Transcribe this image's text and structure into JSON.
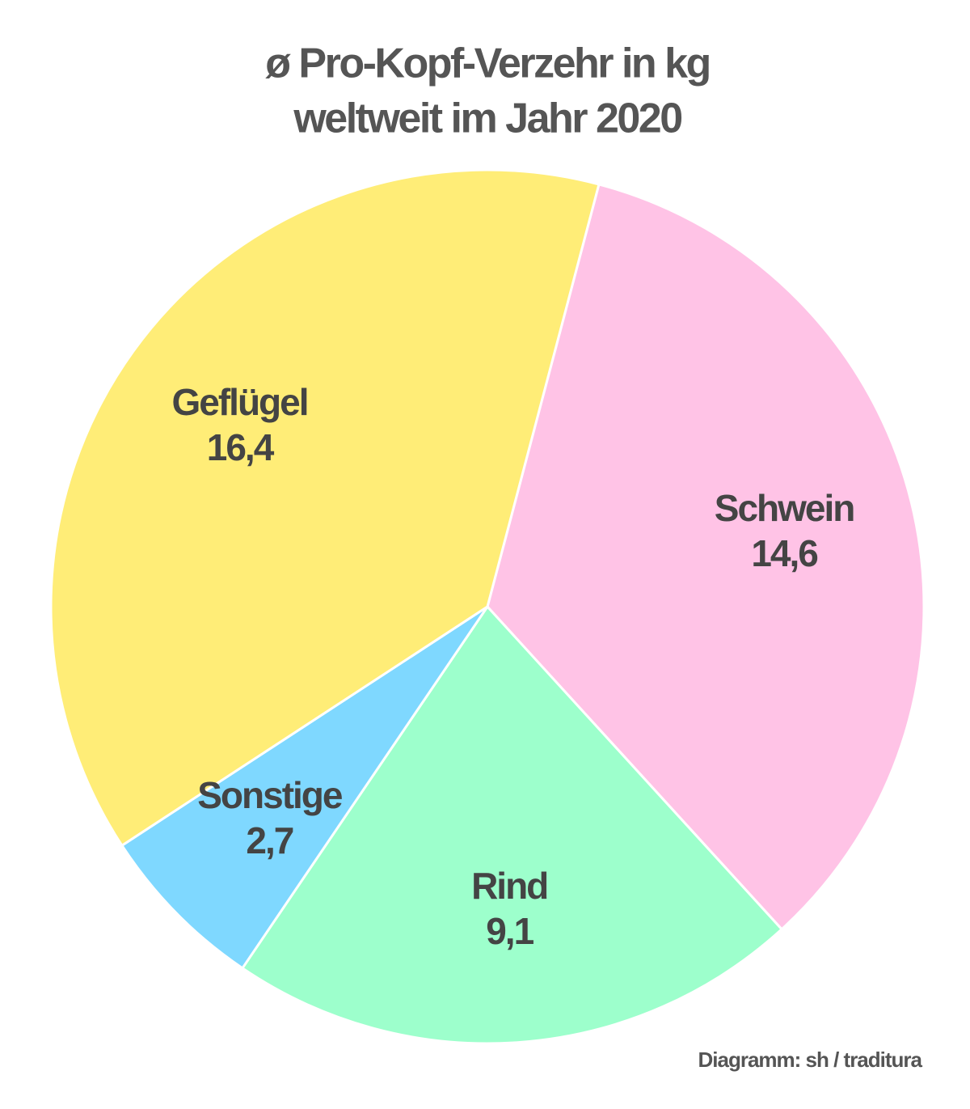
{
  "chart_data": {
    "type": "pie",
    "title": [
      "ø Pro-Kopf-Verzehr in kg",
      "weltweit im Jahr 2020"
    ],
    "categories": [
      "Schwein",
      "Rind",
      "Sonstige",
      "Geflügel"
    ],
    "values": [
      14.6,
      9.1,
      2.7,
      16.4
    ],
    "value_labels": [
      "14,6",
      "9,1",
      "2,7",
      "16,4"
    ],
    "colors": [
      "#ffc3e6",
      "#9dffcc",
      "#7fd8ff",
      "#ffed77"
    ],
    "source": "Diagramm: sh / traditura"
  }
}
